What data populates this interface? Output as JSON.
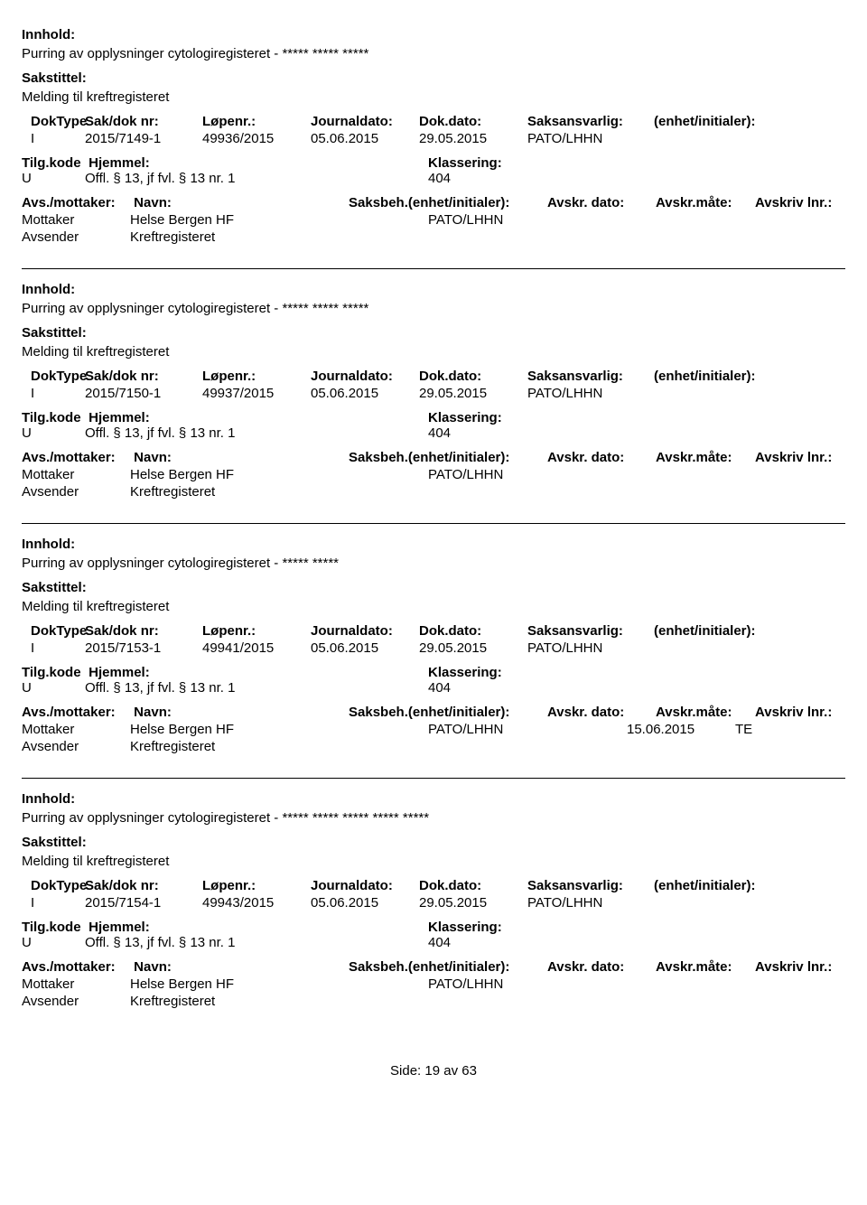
{
  "labels": {
    "innhold": "Innhold:",
    "sakstittel": "Sakstittel:",
    "doktype": "DokType",
    "sakdok": "Sak/dok nr:",
    "lopenr": "Løpenr.:",
    "journaldato": "Journaldato:",
    "dokdato": "Dok.dato:",
    "saksansvarlig": "Saksansvarlig:",
    "enhet": "(enhet/initialer):",
    "tilgkode": "Tilg.kode",
    "hjemmel": "Hjemmel:",
    "klassering": "Klassering:",
    "avs_mottaker": "Avs./mottaker:",
    "navn": "Navn:",
    "saksbeh": "Saksbeh.",
    "saksbeh_enhet": "(enhet/initialer):",
    "avskr_dato": "Avskr. dato:",
    "avskr_maate": "Avskr.måte:",
    "avskriv_lnr": "Avskriv lnr.:",
    "mottaker": "Mottaker",
    "avsender": "Avsender"
  },
  "footer": {
    "side_label": "Side:",
    "page": "19",
    "av": "av",
    "total": "63"
  },
  "records": [
    {
      "innhold": "Purring av opplysninger cytologiregisteret - ***** ***** *****",
      "sakstittel": "Melding til kreftregisteret",
      "doktype": "I",
      "sakdok": "2015/7149-1",
      "lopenr": "49936/2015",
      "journaldato": "05.06.2015",
      "dokdato": "29.05.2015",
      "saksansvarlig": "PATO/LHHN",
      "tilgkode": "U",
      "hjemmel": "Offl. § 13, jf fvl. § 13 nr. 1",
      "klassering": "404",
      "mottaker_navn": "Helse Bergen HF",
      "mottaker_saksbeh": "PATO/LHHN",
      "mottaker_avskrdato": "",
      "mottaker_avskrmaate": "",
      "avsender_navn": "Kreftregisteret"
    },
    {
      "innhold": "Purring av opplysninger cytologiregisteret - ***** ***** *****",
      "sakstittel": "Melding til kreftregisteret",
      "doktype": "I",
      "sakdok": "2015/7150-1",
      "lopenr": "49937/2015",
      "journaldato": "05.06.2015",
      "dokdato": "29.05.2015",
      "saksansvarlig": "PATO/LHHN",
      "tilgkode": "U",
      "hjemmel": "Offl. § 13, jf fvl. § 13 nr. 1",
      "klassering": "404",
      "mottaker_navn": "Helse Bergen HF",
      "mottaker_saksbeh": "PATO/LHHN",
      "mottaker_avskrdato": "",
      "mottaker_avskrmaate": "",
      "avsender_navn": "Kreftregisteret"
    },
    {
      "innhold": "Purring av opplysninger cytologiregisteret - ***** *****",
      "sakstittel": "Melding til kreftregisteret",
      "doktype": "I",
      "sakdok": "2015/7153-1",
      "lopenr": "49941/2015",
      "journaldato": "05.06.2015",
      "dokdato": "29.05.2015",
      "saksansvarlig": "PATO/LHHN",
      "tilgkode": "U",
      "hjemmel": "Offl. § 13, jf fvl. § 13 nr. 1",
      "klassering": "404",
      "mottaker_navn": "Helse Bergen HF",
      "mottaker_saksbeh": "PATO/LHHN",
      "mottaker_avskrdato": "15.06.2015",
      "mottaker_avskrmaate": "TE",
      "avsender_navn": "Kreftregisteret"
    },
    {
      "innhold": "Purring av opplysninger cytologiregisteret - ***** ***** ***** ***** *****",
      "sakstittel": "Melding til kreftregisteret",
      "doktype": "I",
      "sakdok": "2015/7154-1",
      "lopenr": "49943/2015",
      "journaldato": "05.06.2015",
      "dokdato": "29.05.2015",
      "saksansvarlig": "PATO/LHHN",
      "tilgkode": "U",
      "hjemmel": "Offl. § 13, jf fvl. § 13 nr. 1",
      "klassering": "404",
      "mottaker_navn": "Helse Bergen HF",
      "mottaker_saksbeh": "PATO/LHHN",
      "mottaker_avskrdato": "",
      "mottaker_avskrmaate": "",
      "avsender_navn": "Kreftregisteret"
    }
  ]
}
